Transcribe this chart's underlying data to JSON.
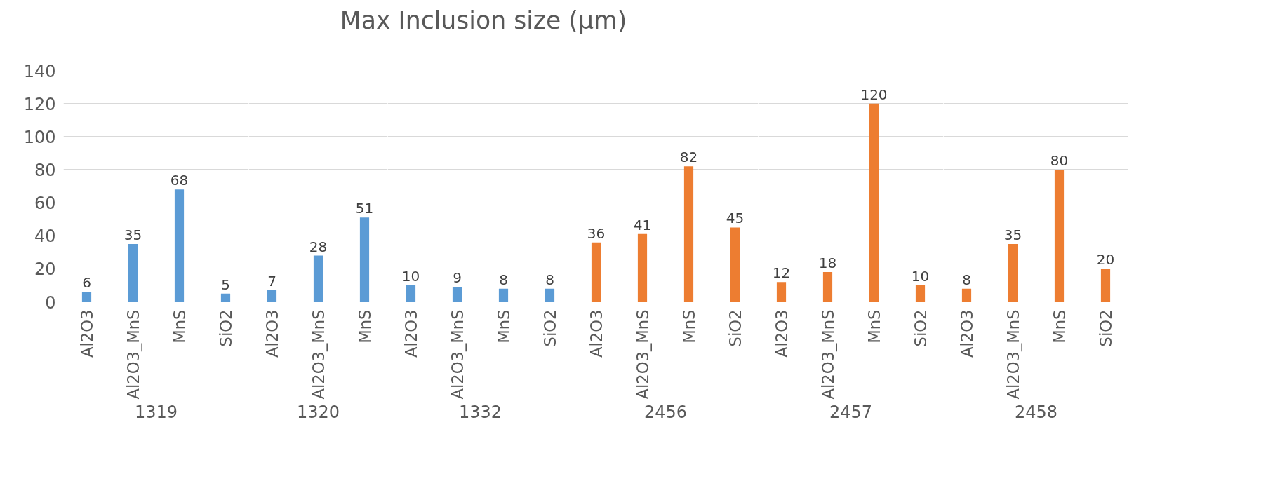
{
  "chart_data": [
    {
      "type": "bar",
      "xlabel": "1319",
      "categories": [
        "Al2O3",
        "Al2O3_MnS",
        "MnS",
        "SiO2"
      ],
      "values": [
        6,
        35,
        68,
        5
      ],
      "color": "#5b9bd5",
      "ylim": [
        0,
        140
      ],
      "yticks": [
        0,
        20,
        40,
        60,
        80,
        100,
        120,
        140
      ],
      "grid": "y",
      "data_labels": true
    },
    {
      "type": "bar",
      "xlabel": "1320",
      "categories": [
        "Al2O3",
        "Al2O3_MnS",
        "MnS"
      ],
      "values": [
        7,
        28,
        51
      ],
      "color": "#5b9bd5",
      "ylim": [
        0,
        140
      ],
      "grid": "y",
      "data_labels": true,
      "tick_labels": "x"
    },
    {
      "type": "bar",
      "title": "Max Inclusion size (μm)",
      "xlabel": "1332",
      "categories": [
        "Al2O3",
        "Al2O3_MnS",
        "MnS",
        "SiO2"
      ],
      "values": [
        10,
        9,
        8,
        8
      ],
      "color": "#5b9bd5",
      "ylim": [
        0,
        140
      ],
      "grid": "y",
      "data_labels": true,
      "tick_labels": "x"
    },
    {
      "type": "bar",
      "xlabel": "2456",
      "categories": [
        "Al2O3",
        "Al2O3_MnS",
        "MnS",
        "SiO2"
      ],
      "values": [
        36,
        41,
        82,
        45
      ],
      "color": "#ed7d31",
      "ylim": [
        0,
        140
      ],
      "grid": "y",
      "data_labels": true,
      "tick_labels": "x"
    },
    {
      "type": "bar",
      "xlabel": "2457",
      "categories": [
        "Al2O3",
        "Al2O3_MnS",
        "MnS",
        "SiO2"
      ],
      "values": [
        12,
        18,
        120,
        10
      ],
      "color": "#ed7d31",
      "ylim": [
        0,
        140
      ],
      "grid": "y",
      "data_labels": true,
      "tick_labels": "x"
    },
    {
      "type": "bar",
      "xlabel": "2458",
      "categories": [
        "Al2O3",
        "Al2O3_MnS",
        "MnS",
        "SiO2"
      ],
      "values": [
        8,
        35,
        80,
        20
      ],
      "color": "#ed7d31",
      "ylim": [
        0,
        140
      ],
      "grid": "y",
      "data_labels": true,
      "tick_labels": "x"
    }
  ]
}
